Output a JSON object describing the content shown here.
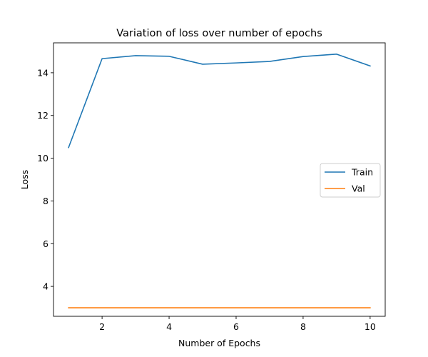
{
  "chart_data": {
    "type": "line",
    "title": "Variation of loss over number of epochs",
    "xlabel": "Number of Epochs",
    "ylabel": "Loss",
    "x": [
      1,
      2,
      3,
      4,
      5,
      6,
      7,
      8,
      9,
      10
    ],
    "xlim": [
      0.55,
      10.45
    ],
    "ylim": [
      2.6,
      15.4
    ],
    "xticks": [
      2,
      4,
      6,
      8,
      10
    ],
    "yticks": [
      4,
      6,
      8,
      10,
      12,
      14
    ],
    "grid": false,
    "legend_position": "center-right",
    "series": [
      {
        "name": "Train",
        "color": "#1f77b4",
        "values": [
          10.5,
          14.66,
          14.8,
          14.77,
          14.4,
          14.46,
          14.53,
          14.76,
          14.87,
          14.32
        ]
      },
      {
        "name": "Val",
        "color": "#ff7f0e",
        "values": [
          3.0,
          3.0,
          3.0,
          3.0,
          3.0,
          3.0,
          3.0,
          3.0,
          3.0,
          3.0
        ]
      }
    ]
  }
}
